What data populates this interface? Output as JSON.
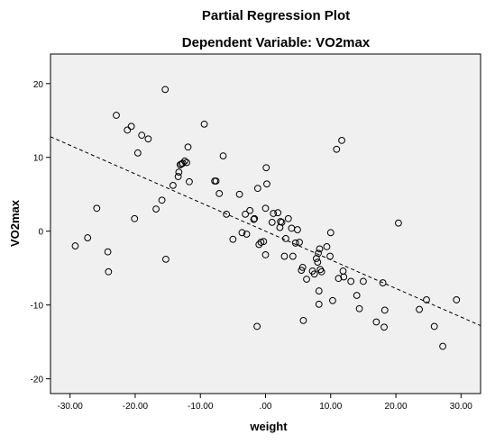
{
  "chart_data": {
    "type": "scatter",
    "title": "Partial Regression Plot",
    "subtitle": "Dependent Variable: VO2max",
    "xlabel": "weight",
    "ylabel": "VO2max",
    "xlim": [
      -33,
      33
    ],
    "ylim": [
      -22,
      24
    ],
    "x_ticks": [
      -30,
      -20,
      -10,
      0,
      10,
      20,
      30
    ],
    "x_tick_labels": [
      "-30.00",
      "-20.00",
      "-10.00",
      ".00",
      "10.00",
      "20.00",
      "30.00"
    ],
    "y_ticks": [
      -20,
      -10,
      0,
      10,
      20
    ],
    "y_tick_labels": [
      "-20",
      "-10",
      "0",
      "10",
      "20"
    ],
    "grid": false,
    "background_color": "#f0f0f0",
    "marker_color": "#000000",
    "fit_line": {
      "style": "dashed",
      "x": [
        -33,
        33
      ],
      "y": [
        12.8,
        -12.8
      ]
    },
    "points": [
      {
        "x": -29.2,
        "y": -2.0
      },
      {
        "x": -27.3,
        "y": -0.9
      },
      {
        "x": -25.9,
        "y": 3.1
      },
      {
        "x": -24.2,
        "y": -2.8
      },
      {
        "x": -24.1,
        "y": -5.5
      },
      {
        "x": -22.9,
        "y": 15.7
      },
      {
        "x": -21.2,
        "y": 13.7
      },
      {
        "x": -20.6,
        "y": 14.2
      },
      {
        "x": -20.1,
        "y": 1.7
      },
      {
        "x": -19.6,
        "y": 10.6
      },
      {
        "x": -19.0,
        "y": 13.0
      },
      {
        "x": -18.0,
        "y": 12.5
      },
      {
        "x": -16.8,
        "y": 3.0
      },
      {
        "x": -15.9,
        "y": 4.2
      },
      {
        "x": -15.4,
        "y": 19.2
      },
      {
        "x": -15.3,
        "y": -3.8
      },
      {
        "x": -14.2,
        "y": 6.2
      },
      {
        "x": -13.4,
        "y": 7.4
      },
      {
        "x": -13.3,
        "y": 8.0
      },
      {
        "x": -13.1,
        "y": 9.0
      },
      {
        "x": -12.9,
        "y": 9.1
      },
      {
        "x": -12.7,
        "y": 9.2
      },
      {
        "x": -12.4,
        "y": 9.5
      },
      {
        "x": -12.1,
        "y": 9.3
      },
      {
        "x": -11.9,
        "y": 11.4
      },
      {
        "x": -11.7,
        "y": 6.7
      },
      {
        "x": -9.4,
        "y": 14.5
      },
      {
        "x": -7.8,
        "y": 6.8
      },
      {
        "x": -7.6,
        "y": 6.8
      },
      {
        "x": -7.1,
        "y": 5.1
      },
      {
        "x": -6.5,
        "y": 10.2
      },
      {
        "x": -6.0,
        "y": 2.3
      },
      {
        "x": -5.0,
        "y": -1.1
      },
      {
        "x": -4.0,
        "y": 5.0
      },
      {
        "x": -3.6,
        "y": -0.2
      },
      {
        "x": -3.1,
        "y": 2.3
      },
      {
        "x": -2.9,
        "y": -0.4
      },
      {
        "x": -2.4,
        "y": 2.8
      },
      {
        "x": -1.8,
        "y": 1.6
      },
      {
        "x": -1.7,
        "y": 1.7
      },
      {
        "x": -1.3,
        "y": -12.9
      },
      {
        "x": -1.2,
        "y": 5.8
      },
      {
        "x": -1.0,
        "y": -1.8
      },
      {
        "x": -0.7,
        "y": -1.5
      },
      {
        "x": -0.3,
        "y": -1.4
      },
      {
        "x": 0.0,
        "y": 3.1
      },
      {
        "x": 0.0,
        "y": -3.2
      },
      {
        "x": 0.1,
        "y": 8.6
      },
      {
        "x": 0.2,
        "y": 6.4
      },
      {
        "x": 1.0,
        "y": 1.2
      },
      {
        "x": 1.2,
        "y": 2.4
      },
      {
        "x": 1.9,
        "y": 2.5
      },
      {
        "x": 2.2,
        "y": 0.5
      },
      {
        "x": 2.3,
        "y": 1.3
      },
      {
        "x": 2.5,
        "y": 1.2
      },
      {
        "x": 2.9,
        "y": -3.4
      },
      {
        "x": 3.1,
        "y": -1.0
      },
      {
        "x": 3.5,
        "y": 1.7
      },
      {
        "x": 4.0,
        "y": 0.4
      },
      {
        "x": 4.2,
        "y": -3.4
      },
      {
        "x": 4.6,
        "y": -1.6
      },
      {
        "x": 4.9,
        "y": 0.2
      },
      {
        "x": 5.2,
        "y": -1.5
      },
      {
        "x": 5.5,
        "y": -5.3
      },
      {
        "x": 5.7,
        "y": -4.9
      },
      {
        "x": 5.8,
        "y": -12.1
      },
      {
        "x": 6.3,
        "y": -6.5
      },
      {
        "x": 7.2,
        "y": -5.4
      },
      {
        "x": 7.5,
        "y": -5.8
      },
      {
        "x": 7.8,
        "y": -3.7
      },
      {
        "x": 8.0,
        "y": -4.2
      },
      {
        "x": 8.1,
        "y": -3.0
      },
      {
        "x": 8.2,
        "y": -8.1
      },
      {
        "x": 8.2,
        "y": -9.9
      },
      {
        "x": 8.3,
        "y": -2.4
      },
      {
        "x": 8.4,
        "y": -5.2
      },
      {
        "x": 8.6,
        "y": -5.5
      },
      {
        "x": 9.4,
        "y": -2.1
      },
      {
        "x": 9.9,
        "y": -3.4
      },
      {
        "x": 10.0,
        "y": -0.2
      },
      {
        "x": 10.3,
        "y": -9.4
      },
      {
        "x": 10.9,
        "y": 11.1
      },
      {
        "x": 11.2,
        "y": -6.4
      },
      {
        "x": 11.7,
        "y": 12.3
      },
      {
        "x": 11.9,
        "y": -5.4
      },
      {
        "x": 12.0,
        "y": -6.2
      },
      {
        "x": 13.1,
        "y": -6.8
      },
      {
        "x": 14.0,
        "y": -8.7
      },
      {
        "x": 14.4,
        "y": -10.5
      },
      {
        "x": 15.0,
        "y": -6.8
      },
      {
        "x": 17.0,
        "y": -12.3
      },
      {
        "x": 18.0,
        "y": -7.0
      },
      {
        "x": 18.2,
        "y": -13.0
      },
      {
        "x": 18.3,
        "y": -10.7
      },
      {
        "x": 20.4,
        "y": 1.1
      },
      {
        "x": 23.6,
        "y": -10.6
      },
      {
        "x": 24.7,
        "y": -9.3
      },
      {
        "x": 25.9,
        "y": -12.9
      },
      {
        "x": 27.2,
        "y": -15.6
      },
      {
        "x": 29.3,
        "y": -9.3
      }
    ]
  }
}
